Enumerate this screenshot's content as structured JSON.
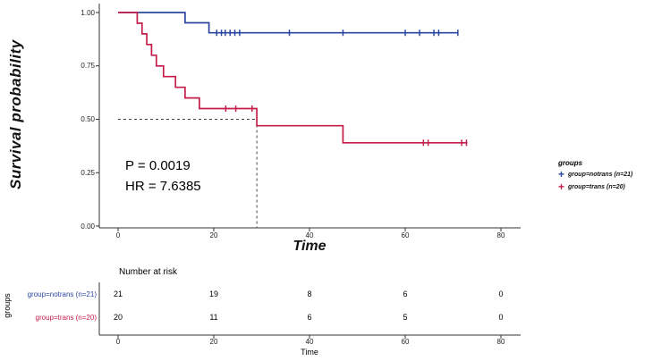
{
  "chart_data": {
    "type": "line",
    "subtype": "kaplan-meier-step-survival",
    "title": "",
    "xlabel": "Time",
    "ylabel": "Survival probability",
    "xlim": [
      0,
      80
    ],
    "ylim": [
      0,
      1.0
    ],
    "grid": false,
    "xticks": [
      0,
      20,
      40,
      60,
      80
    ],
    "xtick_labels": [
      "0",
      "20",
      "40",
      "60",
      "80"
    ],
    "yticks": [
      1.0,
      0.75,
      0.5,
      0.25,
      0.0
    ],
    "ytick_labels": [
      "1.00",
      "0.75",
      "0.50",
      "0.25",
      "0.00"
    ],
    "annotations": {
      "p_value": "P = 0.0019",
      "hazard_ratio": "HR = 7.6385"
    },
    "median_guide": {
      "x": 29,
      "y": 0.5,
      "style": "dashed"
    },
    "legend": {
      "position": "right",
      "title": "groups",
      "entries": [
        {
          "label": "group=notrans (n=21)",
          "color": "#2B479F",
          "marker": "+"
        },
        {
          "label": "group=trans (n=20)",
          "color": "#C41E4A",
          "marker": "+"
        }
      ]
    },
    "series": [
      {
        "name": "group=notrans (n=21)",
        "color": "#2B479F",
        "points": [
          [
            0,
            1.0
          ],
          [
            14,
            1.0
          ],
          [
            14,
            0.952
          ],
          [
            19,
            0.952
          ],
          [
            19,
            0.905
          ],
          [
            71,
            0.905
          ]
        ],
        "censors": [
          [
            20.6,
            0.905
          ],
          [
            21.6,
            0.905
          ],
          [
            22.4,
            0.905
          ],
          [
            23.4,
            0.905
          ],
          [
            24.4,
            0.905
          ],
          [
            25.4,
            0.905
          ],
          [
            35.8,
            0.905
          ],
          [
            47,
            0.905
          ],
          [
            60,
            0.905
          ],
          [
            63,
            0.905
          ],
          [
            66,
            0.905
          ],
          [
            67,
            0.905
          ],
          [
            71,
            0.905
          ]
        ]
      },
      {
        "name": "group=trans (n=20)",
        "color": "#C41E4A",
        "points": [
          [
            0,
            1.0
          ],
          [
            4,
            1.0
          ],
          [
            4,
            0.95
          ],
          [
            5,
            0.95
          ],
          [
            5,
            0.9
          ],
          [
            6,
            0.9
          ],
          [
            6,
            0.85
          ],
          [
            7,
            0.85
          ],
          [
            7,
            0.8
          ],
          [
            8,
            0.8
          ],
          [
            8,
            0.75
          ],
          [
            9.5,
            0.75
          ],
          [
            9.5,
            0.7
          ],
          [
            12,
            0.7
          ],
          [
            12,
            0.65
          ],
          [
            14,
            0.65
          ],
          [
            14,
            0.6
          ],
          [
            17,
            0.6
          ],
          [
            17,
            0.55
          ],
          [
            29,
            0.55
          ],
          [
            29,
            0.47
          ],
          [
            47,
            0.47
          ],
          [
            47,
            0.39
          ],
          [
            73,
            0.39
          ]
        ],
        "censors": [
          [
            22.5,
            0.55
          ],
          [
            24.6,
            0.55
          ],
          [
            28,
            0.55
          ],
          [
            63.8,
            0.39
          ],
          [
            64.8,
            0.39
          ],
          [
            71.8,
            0.39
          ],
          [
            72.8,
            0.39
          ]
        ]
      }
    ],
    "risk_table": {
      "title": "Number at risk",
      "ylabel": "groups",
      "xlabel": "Time",
      "times": [
        0,
        20,
        40,
        60,
        80
      ],
      "rows": [
        {
          "label": "group=notrans (n=21)",
          "color": "#2B479F",
          "values": [
            21,
            19,
            8,
            6,
            0
          ]
        },
        {
          "label": "group=trans (n=20)",
          "color": "#C41E4A",
          "values": [
            20,
            11,
            6,
            5,
            0
          ]
        }
      ]
    }
  }
}
